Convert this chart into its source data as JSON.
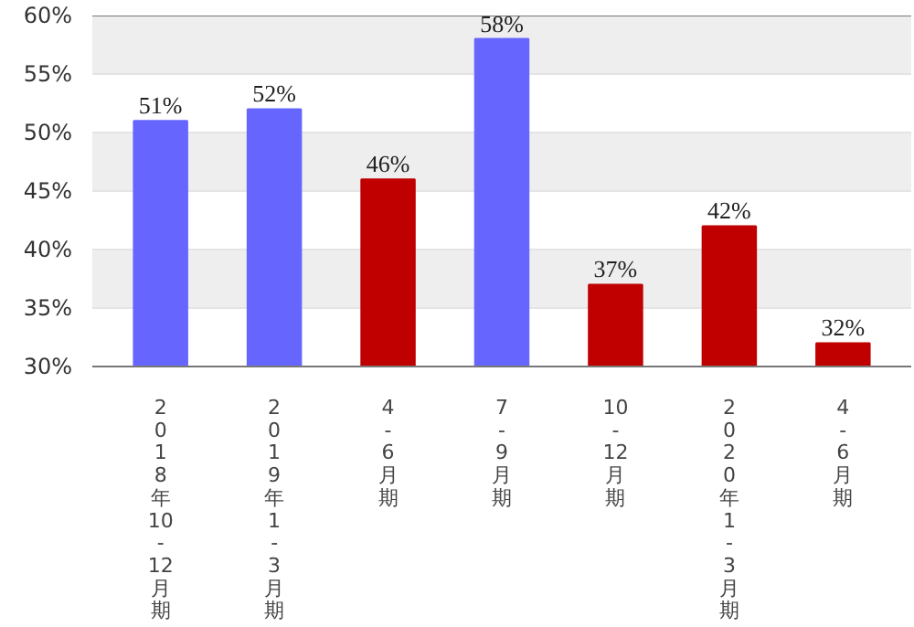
{
  "chart_data": {
    "type": "bar",
    "categories": [
      "2018年10-12月期",
      "2019年1-3月期",
      "4-6月期",
      "7-9月期",
      "10-12月期",
      "2020年1-3月期",
      "4-6月期"
    ],
    "values": [
      51,
      52,
      46,
      58,
      37,
      42,
      32
    ],
    "colors": [
      "#6666ff",
      "#6666ff",
      "#c00000",
      "#6666ff",
      "#c00000",
      "#c00000",
      "#c00000"
    ],
    "value_labels": [
      "51%",
      "52%",
      "46%",
      "58%",
      "37%",
      "42%",
      "32%"
    ],
    "ylim": [
      30,
      60
    ],
    "yticks": [
      {
        "value": 30,
        "label": "30%"
      },
      {
        "value": 35,
        "label": "35%"
      },
      {
        "value": 40,
        "label": "40%"
      },
      {
        "value": 45,
        "label": "45%"
      },
      {
        "value": 50,
        "label": "50%"
      },
      {
        "value": 55,
        "label": "55%"
      },
      {
        "value": 60,
        "label": "60%"
      }
    ],
    "grid": "y"
  }
}
